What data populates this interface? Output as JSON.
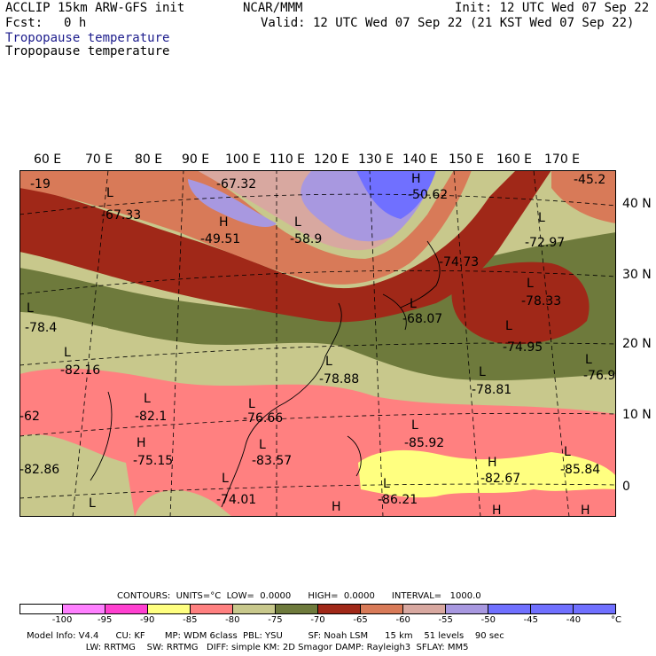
{
  "header": {
    "model_line": "ACCLIP 15km ARW-GFS init",
    "center": "NCAR/MMM",
    "init": "Init: 12 UTC Wed 07 Sep 22",
    "fcst_label": "Fcst:",
    "fcst_value": "0 h",
    "valid": "Valid: 12 UTC Wed 07 Sep 22 (21 KST Wed 07 Sep 22)",
    "field1": "Tropopause temperature",
    "field2": "Tropopause temperature"
  },
  "map": {
    "lon_labels": [
      "60 E",
      "70 E",
      "80 E",
      "90 E",
      "100 E",
      "110 E",
      "120 E",
      "130 E",
      "140 E",
      "150 E",
      "160 E",
      "170 E"
    ],
    "lat_labels": [
      "40 N",
      "30 N",
      "20 N",
      "10 N",
      "0"
    ],
    "extrema": [
      {
        "type": "L",
        "value": "-67.33"
      },
      {
        "type": "H",
        "value": "-67.32"
      },
      {
        "type": "H",
        "value": "-49.51"
      },
      {
        "type": "L",
        "value": "-58.9"
      },
      {
        "type": "H",
        "value": "-50.62"
      },
      {
        "type": "L",
        "value": "-45.2"
      },
      {
        "type": "L",
        "value": "-72.97"
      },
      {
        "type": "L",
        "value": "-74.73"
      },
      {
        "type": "L",
        "value": "-78.33"
      },
      {
        "type": "L",
        "value": "-68.07"
      },
      {
        "type": "L",
        "value": "-74.95"
      },
      {
        "type": "L",
        "value": "-76.9"
      },
      {
        "type": "L",
        "value": "-78.4"
      },
      {
        "type": "L",
        "value": "-82.16"
      },
      {
        "type": "L",
        "value": "-78.88"
      },
      {
        "type": "L",
        "value": "-78.81"
      },
      {
        "type": "L",
        "value": "-82.1"
      },
      {
        "type": "L",
        "value": "-76.66"
      },
      {
        "type": "L",
        "value": "-85.92"
      },
      {
        "type": "H",
        "value": "-75.15"
      },
      {
        "type": "L",
        "value": "-83.57"
      },
      {
        "type": "H",
        "value": "-82.67"
      },
      {
        "type": "L",
        "value": "-85.84"
      },
      {
        "type": "L",
        "value": "-86.21"
      },
      {
        "type": "L",
        "value": "-74.01"
      },
      {
        "type": "L",
        "value": "-62"
      },
      {
        "type": "L",
        "value": "-82.86"
      },
      {
        "type": "L",
        "value": "-19"
      }
    ]
  },
  "contours": {
    "line": "CONTOURS:  UNITS=°C  LOW=  0.0000      HIGH=  0.0000      INTERVAL=   1000.0"
  },
  "legend": {
    "colors": [
      "#ffffff",
      "#ff80ff",
      "#ff40d0",
      "#ffff80",
      "#ff8080",
      "#c8c88c",
      "#6e7a3c",
      "#a02818",
      "#d87a58",
      "#d8a8a0",
      "#a898e0",
      "#7070ff",
      "#7070ff",
      "#7070ff"
    ],
    "labels": [
      "-100",
      "-95",
      "-90",
      "-85",
      "-80",
      "-75",
      "-70",
      "-65",
      "-60",
      "-55",
      "-50",
      "-45",
      "-40",
      "°C"
    ]
  },
  "footer": {
    "line1": "Model Info: V4.4      CU: KF       MP: WDM 6class  PBL: YSU         SF: Noah LSM      15 km    51 levels    90 sec",
    "line2": "                     LW: RRTMG    SW: RRTMG   DIFF: simple KM: 2D Smagor DAMP: Rayleigh3  SFLAY: MM5"
  }
}
